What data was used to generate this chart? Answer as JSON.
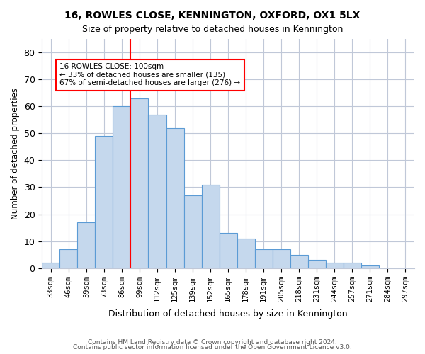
{
  "title": "16, ROWLES CLOSE, KENNINGTON, OXFORD, OX1 5LX",
  "subtitle": "Size of property relative to detached houses in Kennington",
  "xlabel": "Distribution of detached houses by size in Kennington",
  "ylabel": "Number of detached properties",
  "bar_color": "#c5d8ed",
  "bar_edge_color": "#5b9bd5",
  "bin_labels": [
    "33sqm",
    "46sqm",
    "59sqm",
    "73sqm",
    "86sqm",
    "99sqm",
    "112sqm",
    "125sqm",
    "139sqm",
    "152sqm",
    "165sqm",
    "178sqm",
    "191sqm",
    "205sqm",
    "218sqm",
    "231sqm",
    "244sqm",
    "257sqm",
    "271sqm",
    "284sqm",
    "297sqm"
  ],
  "bar_heights": [
    2,
    7,
    17,
    49,
    60,
    63,
    57,
    52,
    27,
    31,
    13,
    11,
    7,
    7,
    5,
    3,
    2,
    2,
    1,
    0,
    0
  ],
  "ylim": [
    0,
    85
  ],
  "yticks": [
    0,
    10,
    20,
    30,
    40,
    50,
    60,
    70,
    80
  ],
  "red_line_index": 5,
  "annotation_text": "16 ROWLES CLOSE: 100sqm\n← 33% of detached houses are smaller (135)\n67% of semi-detached houses are larger (276) →",
  "footnote1": "Contains HM Land Registry data © Crown copyright and database right 2024.",
  "footnote2": "Contains public sector information licensed under the Open Government Licence v3.0.",
  "background_color": "#ffffff",
  "grid_color": "#c0c8d8"
}
